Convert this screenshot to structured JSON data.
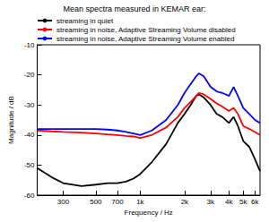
{
  "chart_data": {
    "type": "line",
    "title": "Mean spectra measured in KEMAR ear:",
    "x_label": "Frequency / Hz",
    "y_label": "Magnitude / dB",
    "log": "x",
    "grid": false,
    "legend": "top",
    "x": [
      200,
      250,
      300,
      400,
      500,
      600,
      700,
      800,
      900,
      1000,
      1200,
      1500,
      1800,
      2000,
      2200,
      2400,
      2500,
      2700,
      3000,
      3300,
      3600,
      4000,
      4300,
      4600,
      5000,
      5500,
      6000,
      6500
    ],
    "series": [
      {
        "name": "streaming in quiet",
        "color": "#000000",
        "line_style": "solid",
        "values": [
          -51,
          -54,
          -56,
          -57,
          -56.5,
          -56,
          -56,
          -55.5,
          -54.5,
          -53,
          -49,
          -43,
          -36,
          -33,
          -30,
          -27,
          -26.5,
          -27.5,
          -30,
          -33,
          -34,
          -36,
          -34,
          -37,
          -42,
          -44,
          -48,
          -52
        ]
      },
      {
        "name": "streaming in noise, Adaptive Streaming Volume disabled",
        "color": "#ff0000",
        "line_style": "solid",
        "values": [
          -38.5,
          -38.8,
          -39,
          -39.2,
          -39.5,
          -39.8,
          -40,
          -40.3,
          -40.5,
          -41,
          -40,
          -37.5,
          -34,
          -31,
          -29,
          -27,
          -26,
          -26.5,
          -28,
          -29.5,
          -30.5,
          -32,
          -31,
          -33,
          -37,
          -38,
          -39,
          -40
        ]
      },
      {
        "name": "streaming in noise, Adaptive Streaming Volume enabled",
        "color": "#0000ff",
        "line_style": "solid",
        "values": [
          -38,
          -38,
          -38,
          -38,
          -38,
          -38.2,
          -38.5,
          -39,
          -39.5,
          -40,
          -38.5,
          -35,
          -30,
          -26,
          -23,
          -20.5,
          -19.5,
          -20.5,
          -24,
          -25.5,
          -26,
          -27,
          -24,
          -27,
          -31,
          -33,
          -35,
          -36
        ]
      }
    ],
    "xlim": [
      200,
      6500
    ],
    "xticks": [
      300,
      500,
      700,
      {
        "value": 1000,
        "label": "1k"
      },
      {
        "value": 2000,
        "label": "2k"
      },
      {
        "value": 3000,
        "label": "3k"
      },
      {
        "value": 4000,
        "label": "4k"
      },
      {
        "value": 5000,
        "label": "5k"
      },
      {
        "value": 6000,
        "label": "6k"
      }
    ],
    "ylim": [
      -60,
      -10
    ],
    "yticks": [
      -60,
      -50,
      -40,
      -30,
      -20,
      -10
    ]
  }
}
